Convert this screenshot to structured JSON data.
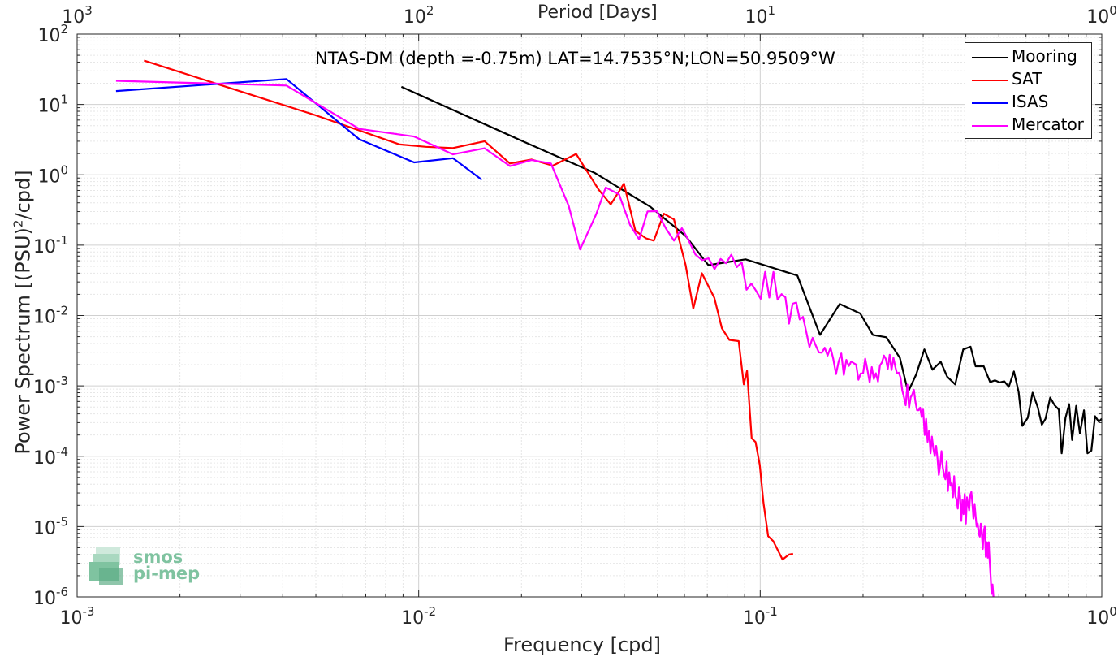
{
  "chart_data": {
    "type": "line",
    "title": "NTAS-DM (depth =-0.75m) LAT=14.7535°N;LON=50.9509°W",
    "xlabel": "Frequency [cpd]",
    "ylabel_main": "Power Spectrum [(PSU)",
    "ylabel_sup": "2",
    "ylabel_tail": "/cpd]",
    "top_axis_label": "Period [Days]",
    "x_scale": "log",
    "y_scale": "log",
    "xlim": [
      0.001,
      1
    ],
    "ylim": [
      1e-06,
      100
    ],
    "grid": true,
    "legend_position": "top-right",
    "x_ticks": [
      {
        "value": 0.001,
        "base": "10",
        "exp": "-3"
      },
      {
        "value": 0.01,
        "base": "10",
        "exp": "-2"
      },
      {
        "value": 0.1,
        "base": "10",
        "exp": "-1"
      },
      {
        "value": 1,
        "base": "10",
        "exp": "0"
      }
    ],
    "y_ticks": [
      {
        "value": 100,
        "base": "10",
        "exp": "2"
      },
      {
        "value": 10,
        "base": "10",
        "exp": "1"
      },
      {
        "value": 1,
        "base": "10",
        "exp": "0"
      },
      {
        "value": 0.1,
        "base": "10",
        "exp": "-1"
      },
      {
        "value": 0.01,
        "base": "10",
        "exp": "-2"
      },
      {
        "value": 0.001,
        "base": "10",
        "exp": "-3"
      },
      {
        "value": 0.0001,
        "base": "10",
        "exp": "-4"
      },
      {
        "value": 1e-05,
        "base": "10",
        "exp": "-5"
      },
      {
        "value": 1e-06,
        "base": "10",
        "exp": "-6"
      }
    ],
    "top_ticks": [
      {
        "freq": 0.001,
        "base": "10",
        "exp": "3"
      },
      {
        "freq": 0.01,
        "base": "10",
        "exp": "2"
      },
      {
        "freq": 0.1,
        "base": "10",
        "exp": "1"
      },
      {
        "freq": 1,
        "base": "10",
        "exp": "0"
      }
    ],
    "series": [
      {
        "name": "Mooring",
        "color": "#000000",
        "points": [
          [
            0.0089,
            17.8
          ],
          [
            0.0205,
            2.9
          ],
          [
            0.0327,
            1.07
          ],
          [
            0.0477,
            0.35
          ],
          [
            0.0605,
            0.135
          ],
          [
            0.0705,
            0.052
          ],
          [
            0.0906,
            0.063
          ],
          [
            0.1285,
            0.037
          ],
          [
            0.1497,
            0.0053
          ],
          [
            0.1709,
            0.0146
          ],
          [
            0.1962,
            0.0107
          ],
          [
            0.2137,
            0.0053
          ],
          [
            0.2341,
            0.0049
          ],
          [
            0.2564,
            0.0025
          ],
          [
            0.2709,
            0.00082
          ],
          [
            0.2862,
            0.00145
          ],
          [
            0.3024,
            0.0033
          ],
          [
            0.3195,
            0.0017
          ],
          [
            0.3376,
            0.0022
          ],
          [
            0.3527,
            0.00135
          ],
          [
            0.3724,
            0.00105
          ],
          [
            0.3931,
            0.0033
          ],
          [
            0.4129,
            0.0036
          ],
          [
            0.4272,
            0.0019
          ],
          [
            0.4511,
            0.0019
          ],
          [
            0.4711,
            0.00113
          ],
          [
            0.4867,
            0.0012
          ],
          [
            0.5024,
            0.00112
          ],
          [
            0.5181,
            0.00116
          ],
          [
            0.5343,
            0.00097
          ],
          [
            0.5532,
            0.0016
          ],
          [
            0.5708,
            0.00082
          ],
          [
            0.5854,
            0.00027
          ],
          [
            0.6071,
            0.00035
          ],
          [
            0.6272,
            0.0008
          ],
          [
            0.6494,
            0.0005
          ],
          [
            0.6678,
            0.00028
          ],
          [
            0.6845,
            0.00034
          ],
          [
            0.7064,
            0.00068
          ],
          [
            0.7275,
            0.00053
          ],
          [
            0.7487,
            0.00046
          ],
          [
            0.7631,
            0.00011
          ],
          [
            0.7831,
            0.00035
          ],
          [
            0.8023,
            0.00055
          ],
          [
            0.8191,
            0.00017
          ],
          [
            0.8417,
            0.00052
          ],
          [
            0.8633,
            0.00021
          ],
          [
            0.8868,
            0.00045
          ],
          [
            0.9084,
            0.00011
          ],
          [
            0.9322,
            0.00012
          ],
          [
            0.9555,
            0.00037
          ],
          [
            0.98,
            0.00031
          ],
          [
            1.0,
            0.00034
          ]
        ]
      },
      {
        "name": "SAT",
        "color": "#ff0000",
        "points": [
          [
            0.00157,
            42
          ],
          [
            0.00255,
            19.8
          ],
          [
            0.005,
            7
          ],
          [
            0.0088,
            2.7
          ],
          [
            0.0105,
            2.5
          ],
          [
            0.0126,
            2.4
          ],
          [
            0.0156,
            3.0
          ],
          [
            0.0185,
            1.45
          ],
          [
            0.0214,
            1.65
          ],
          [
            0.0247,
            1.35
          ],
          [
            0.0289,
            1.98
          ],
          [
            0.0336,
            0.62
          ],
          [
            0.0365,
            0.38
          ],
          [
            0.0399,
            0.75
          ],
          [
            0.0431,
            0.16
          ],
          [
            0.0463,
            0.125
          ],
          [
            0.0488,
            0.116
          ],
          [
            0.0522,
            0.28
          ],
          [
            0.0559,
            0.232
          ],
          [
            0.0605,
            0.052
          ],
          [
            0.0637,
            0.0125
          ],
          [
            0.0675,
            0.0398
          ],
          [
            0.0734,
            0.0179
          ],
          [
            0.0772,
            0.0066
          ],
          [
            0.0812,
            0.0045
          ],
          [
            0.0865,
            0.00433
          ],
          [
            0.0895,
            0.00105
          ],
          [
            0.0915,
            0.00164
          ],
          [
            0.0944,
            0.00018
          ],
          [
            0.0969,
            0.000159
          ],
          [
            0.0997,
            7.5e-05
          ],
          [
            0.1022,
            2.2e-05
          ],
          [
            0.1055,
            7.3e-06
          ],
          [
            0.1092,
            6.2e-06
          ],
          [
            0.1162,
            3.4e-06
          ],
          [
            0.1215,
            4e-06
          ],
          [
            0.1248,
            4.1e-06
          ]
        ]
      },
      {
        "name": "ISAS",
        "color": "#0000ff",
        "points": [
          [
            0.0013,
            15.5
          ],
          [
            0.0041,
            23
          ],
          [
            0.0067,
            3.2
          ],
          [
            0.0097,
            1.5
          ],
          [
            0.0126,
            1.72
          ],
          [
            0.0153,
            0.85
          ]
        ]
      },
      {
        "name": "Mercator",
        "color": "#ff00ff",
        "points": [
          [
            0.0013,
            21.7
          ],
          [
            0.0041,
            18.6
          ],
          [
            0.0067,
            4.5
          ],
          [
            0.0097,
            3.5
          ],
          [
            0.0126,
            1.95
          ],
          [
            0.0156,
            2.38
          ],
          [
            0.0185,
            1.33
          ],
          [
            0.0214,
            1.62
          ],
          [
            0.0244,
            1.45
          ],
          [
            0.0275,
            0.36
          ],
          [
            0.0297,
            0.087
          ],
          [
            0.0331,
            0.275
          ],
          [
            0.0353,
            0.66
          ],
          [
            0.0386,
            0.527
          ],
          [
            0.0416,
            0.193
          ],
          [
            0.0442,
            0.121
          ],
          [
            0.0468,
            0.302
          ],
          [
            0.0498,
            0.304
          ],
          [
            0.0529,
            0.174
          ],
          [
            0.0559,
            0.116
          ],
          [
            0.059,
            0.174
          ],
          [
            0.0616,
            0.119
          ],
          [
            0.0646,
            0.0739
          ],
          [
            0.0676,
            0.0612
          ],
          [
            0.0706,
            0.0649
          ],
          [
            0.0735,
            0.0457
          ],
          [
            0.0766,
            0.0638
          ],
          [
            0.0794,
            0.0552
          ],
          [
            0.0823,
            0.0732
          ],
          [
            0.0854,
            0.0487
          ],
          [
            0.0883,
            0.0571
          ],
          [
            0.0912,
            0.0232
          ],
          [
            0.0942,
            0.0284
          ],
          [
            0.0973,
            0.0224
          ],
          [
            0.1003,
            0.0173
          ],
          [
            0.1034,
            0.0418
          ],
          [
            0.1063,
            0.018
          ],
          [
            0.1093,
            0.0417
          ],
          [
            0.1124,
            0.0168
          ],
          [
            0.1155,
            0.0201
          ],
          [
            0.1185,
            0.0182
          ],
          [
            0.1214,
            0.00766
          ],
          [
            0.1244,
            0.0147
          ],
          [
            0.1275,
            0.0153
          ],
          [
            0.1305,
            0.00877
          ],
          [
            0.1334,
            0.00955
          ],
          [
            0.1364,
            0.00589
          ],
          [
            0.1394,
            0.00356
          ],
          [
            0.1424,
            0.00482
          ],
          [
            0.1455,
            0.00373
          ],
          [
            0.1485,
            0.00299
          ],
          [
            0.1515,
            0.00296
          ],
          [
            0.1545,
            0.00348
          ],
          [
            0.1575,
            0.00269
          ],
          [
            0.1606,
            0.00349
          ],
          [
            0.1636,
            0.00242
          ],
          [
            0.1667,
            0.00147
          ],
          [
            0.1697,
            0.00224
          ],
          [
            0.1727,
            0.00289
          ],
          [
            0.1757,
            0.00143
          ],
          [
            0.1787,
            0.00234
          ],
          [
            0.1818,
            0.00192
          ],
          [
            0.1848,
            0.00223
          ],
          [
            0.1878,
            0.0021
          ],
          [
            0.1909,
            0.00201
          ],
          [
            0.1939,
            0.00122
          ],
          [
            0.1969,
            0.0015
          ],
          [
            0.2,
            0.0015
          ],
          [
            0.2029,
            0.00244
          ],
          [
            0.206,
            0.00168
          ],
          [
            0.2091,
            0.00112
          ],
          [
            0.2121,
            0.00185
          ],
          [
            0.2151,
            0.00125
          ],
          [
            0.2181,
            0.00151
          ],
          [
            0.2212,
            0.00115
          ],
          [
            0.2242,
            0.00195
          ],
          [
            0.2272,
            0.00215
          ],
          [
            0.2303,
            0.0027
          ],
          [
            0.2333,
            0.0024
          ],
          [
            0.2364,
            0.00175
          ],
          [
            0.2394,
            0.00277
          ],
          [
            0.2424,
            0.00168
          ],
          [
            0.2455,
            0.00251
          ],
          [
            0.2485,
            0.00189
          ],
          [
            0.2515,
            0.0015
          ],
          [
            0.2545,
            0.00154
          ],
          [
            0.2576,
            0.00131
          ],
          [
            0.2606,
            0.00086
          ],
          [
            0.2636,
            0.00069
          ],
          [
            0.2667,
            0.00053
          ],
          [
            0.2697,
            0.00104
          ],
          [
            0.2727,
            0.00048
          ],
          [
            0.2758,
            0.00069
          ],
          [
            0.2788,
            0.00076
          ],
          [
            0.2818,
            0.00088
          ],
          [
            0.2848,
            0.00059
          ],
          [
            0.2879,
            0.00045
          ],
          [
            0.2909,
            0.00045
          ],
          [
            0.2939,
            0.00049
          ],
          [
            0.297,
            0.00036
          ],
          [
            0.3,
            0.00046
          ],
          [
            0.303,
            0.0002
          ],
          [
            0.3061,
            0.00034
          ],
          [
            0.3091,
            0.00016
          ],
          [
            0.3121,
            0.00023
          ],
          [
            0.3152,
            0.00011
          ],
          [
            0.3182,
            0.00019
          ],
          [
            0.3212,
            0.00013
          ],
          [
            0.3243,
            0.0001
          ],
          [
            0.3273,
            0.00014
          ],
          [
            0.3303,
            9.5e-05
          ],
          [
            0.3333,
            5.4e-05
          ],
          [
            0.3364,
            7.5e-05
          ],
          [
            0.3394,
            0.000118
          ],
          [
            0.3424,
            6.9e-05
          ],
          [
            0.3455,
            5.4e-05
          ],
          [
            0.3485,
            4.7e-05
          ],
          [
            0.3515,
            8.4e-05
          ],
          [
            0.3545,
            3.2e-05
          ],
          [
            0.3576,
            5.9e-05
          ],
          [
            0.3606,
            3.8e-05
          ],
          [
            0.3636,
            4.1e-05
          ],
          [
            0.3667,
            2.6e-05
          ],
          [
            0.3697,
            5.2e-05
          ],
          [
            0.3727,
            2.7e-05
          ],
          [
            0.3758,
            2.4e-05
          ],
          [
            0.3788,
            1.8e-05
          ],
          [
            0.3818,
            3.6e-05
          ],
          [
            0.3848,
            2.7e-05
          ],
          [
            0.3879,
            1.2e-05
          ],
          [
            0.3909,
            2.4e-05
          ],
          [
            0.3939,
            1.5e-05
          ],
          [
            0.397,
            2.9e-05
          ],
          [
            0.4,
            1.1e-05
          ],
          [
            0.403,
            2.6e-05
          ],
          [
            0.4061,
            2.1e-05
          ],
          [
            0.4091,
            1.7e-05
          ],
          [
            0.4121,
            2.8e-05
          ],
          [
            0.4152,
            3.1e-05
          ],
          [
            0.4182,
            2.1e-05
          ],
          [
            0.4212,
            1.3e-05
          ],
          [
            0.4243,
            2.1e-05
          ],
          [
            0.4273,
            1.4e-05
          ],
          [
            0.4303,
            1e-05
          ],
          [
            0.4333,
            1.1e-05
          ],
          [
            0.4364,
            7.9e-06
          ],
          [
            0.4394,
            7.2e-06
          ],
          [
            0.4424,
            1.1e-05
          ],
          [
            0.4455,
            7.7e-06
          ],
          [
            0.4485,
            4.8e-06
          ],
          [
            0.4515,
            8.7e-06
          ],
          [
            0.4545,
            1e-05
          ],
          [
            0.4576,
            3.7e-06
          ],
          [
            0.4606,
            6e-06
          ],
          [
            0.4636,
            3.6e-06
          ],
          [
            0.4667,
            6e-06
          ],
          [
            0.4697,
            3.3e-06
          ],
          [
            0.4727,
            2e-06
          ],
          [
            0.4758,
            1.1e-06
          ],
          [
            0.4788,
            1.5e-06
          ],
          [
            0.4818,
            1e-06
          ]
        ]
      }
    ]
  },
  "watermark": {
    "line1": "smos",
    "line2": "pi-mep"
  }
}
